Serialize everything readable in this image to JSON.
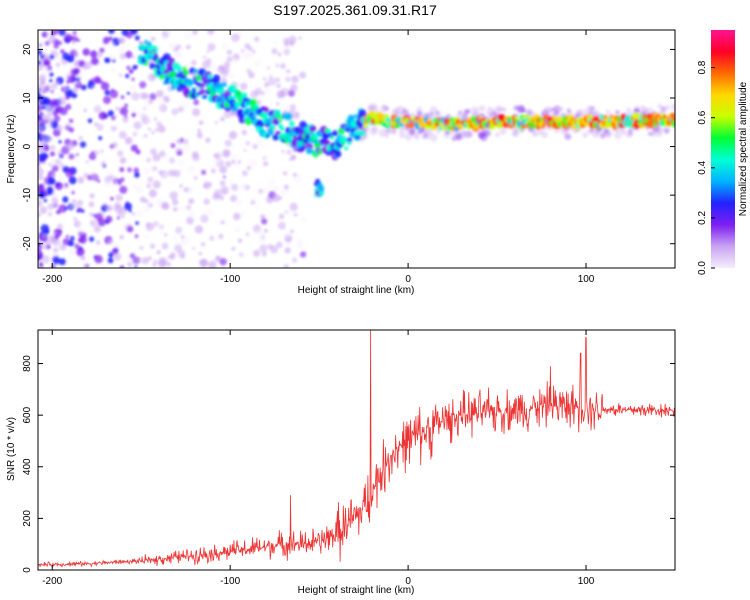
{
  "title": "S197.2025.361.09.31.R17",
  "chart_data": [
    {
      "type": "heatmap",
      "xlabel": "Height of straight line (km)",
      "ylabel": "Frequency (Hz)",
      "xlim": [
        -208,
        150
      ],
      "ylim": [
        -25,
        24
      ],
      "xticks": [
        -200,
        -100,
        0,
        100
      ],
      "yticks": [
        -20,
        -10,
        0,
        10,
        20
      ],
      "colorbar": {
        "label": "Normalized spectral amplitude",
        "range": [
          0,
          0.95
        ],
        "ticks": [
          "0.0",
          "0.2",
          "0.4",
          "0.6",
          "0.8"
        ],
        "colors": [
          "#f5eefc",
          "#c9a3f2",
          "#7d1ff0",
          "#2222ff",
          "#00b4ff",
          "#00ffd5",
          "#00ff33",
          "#c8ff00",
          "#ffd800",
          "#ff6a00",
          "#ff0028",
          "#ff1493"
        ]
      },
      "ridge": {
        "x": [
          -150,
          -140,
          -130,
          -120,
          -110,
          -100,
          -90,
          -80,
          -70,
          -60,
          -50,
          -40,
          -30,
          -25,
          -20,
          -10,
          0,
          20,
          50,
          100,
          150
        ],
        "frequency": [
          20,
          17,
          14,
          13,
          12,
          10,
          7,
          5,
          4,
          2,
          1,
          0.5,
          4,
          5,
          6,
          5,
          5,
          4.5,
          5,
          5,
          5.5
        ]
      },
      "spur": {
        "x": -50,
        "frequency": [
          -10,
          -7
        ]
      }
    },
    {
      "type": "line",
      "xlabel": "Height of straight line (km)",
      "ylabel": "SNR (10 * v/v)",
      "xlim": [
        -208,
        150
      ],
      "ylim": [
        0,
        930
      ],
      "xticks": [
        -200,
        -100,
        0,
        100
      ],
      "yticks": [
        0,
        200,
        400,
        600,
        800
      ],
      "color": "#ee3333",
      "trend": {
        "x": [
          -208,
          -180,
          -150,
          -130,
          -110,
          -90,
          -70,
          -60,
          -50,
          -40,
          -30,
          -25,
          -20,
          -15,
          -10,
          -5,
          0,
          10,
          20,
          30,
          40,
          60,
          80,
          100,
          120,
          150
        ],
        "y": [
          20,
          25,
          35,
          50,
          65,
          80,
          100,
          100,
          110,
          140,
          200,
          240,
          300,
          380,
          440,
          480,
          500,
          540,
          580,
          600,
          610,
          620,
          640,
          630,
          620,
          620
        ]
      },
      "peaks": [
        {
          "x": -21,
          "y": 930
        },
        {
          "x": 100,
          "y": 900
        },
        {
          "x": 97,
          "y": 840
        },
        {
          "x": 80,
          "y": 790
        },
        {
          "x": -66,
          "y": 290
        }
      ]
    }
  ]
}
